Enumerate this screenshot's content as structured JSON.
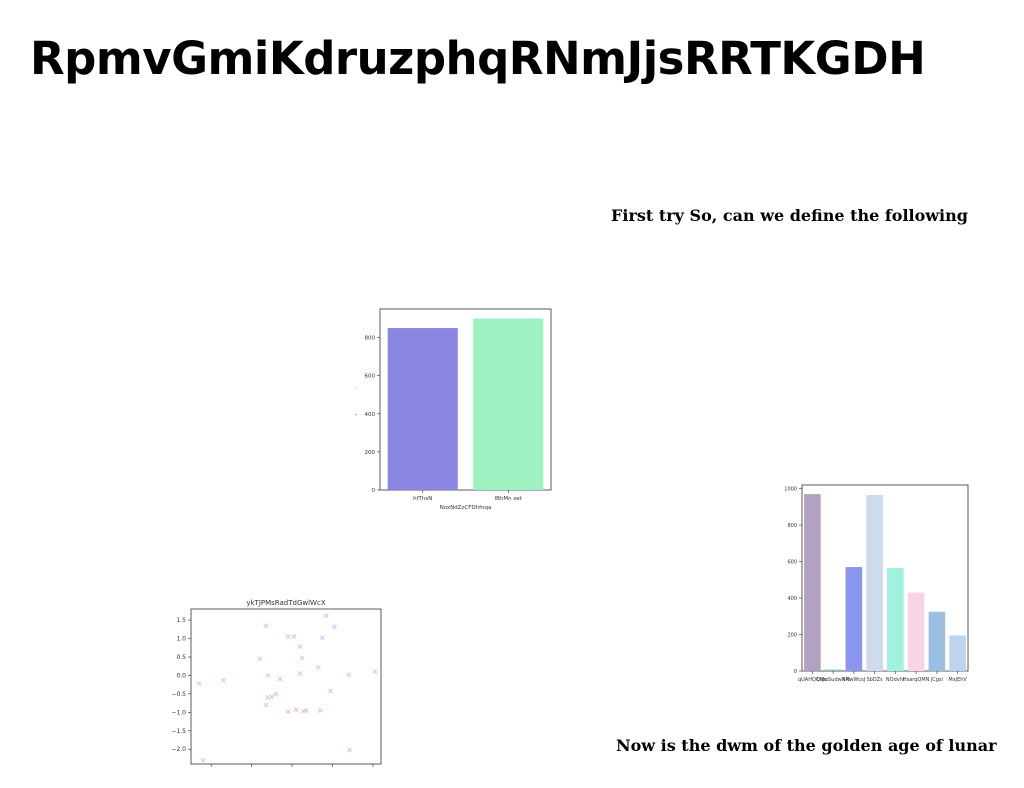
{
  "page": {
    "title": "RpmvGmiKdruzphqRNmJjsRRTKGDH",
    "caption_top": "First try So, can we define the following",
    "caption_bottom": "Now is the dwm of the  golden age of lunar"
  },
  "chart_data": [
    {
      "type": "bar",
      "categories": [
        "hfThsN",
        "lBhMn xet"
      ],
      "values": [
        850,
        900
      ],
      "colors": [
        "#8a86e2",
        "#9ef2c2"
      ],
      "xlabel": "NoxNdZzCFDhfnqa",
      "ylabel": "bHyTSZAAYQHfXl",
      "ylim": [
        0,
        950
      ],
      "yticks": [
        0,
        200,
        400,
        600,
        800
      ],
      "grid": false
    },
    {
      "type": "scatter",
      "title": "ykTJPMsRadTdGwlWcX",
      "marker": "x",
      "color": "#e3b8f0",
      "xlim": [
        -2.5,
        2.2
      ],
      "ylim": [
        -2.4,
        1.8
      ],
      "xticks": [
        -2,
        -1,
        0,
        1,
        2
      ],
      "yticks": [
        -2.0,
        -1.5,
        -1.0,
        -0.5,
        0.0,
        0.5,
        1.0,
        1.5
      ],
      "x": [
        -2.3,
        -2.2,
        -1.7,
        -0.8,
        -0.65,
        -0.6,
        -0.65,
        -0.6,
        -0.5,
        -0.4,
        -0.3,
        -0.1,
        0.05,
        0.1,
        0.2,
        0.25,
        0.28,
        0.35,
        0.65,
        0.7,
        0.75,
        0.85,
        0.95,
        1.05,
        1.4,
        1.42,
        2.05,
        -0.1,
        0.2
      ],
      "y": [
        -0.22,
        -2.3,
        -0.13,
        0.45,
        1.35,
        0.0,
        -0.8,
        -0.6,
        -0.58,
        -0.5,
        -0.1,
        1.05,
        1.05,
        -0.93,
        0.78,
        0.47,
        -0.97,
        -0.95,
        0.22,
        -0.95,
        1.02,
        1.62,
        -0.42,
        1.32,
        0.02,
        -2.02,
        0.1,
        -0.98,
        0.05
      ]
    },
    {
      "type": "bar",
      "categories": [
        "qUAHQQMs",
        "CtpoSudwNPi",
        "hNwWcsJ",
        "SbDZs",
        "NOdvht",
        "HsarqQMN",
        "jCgsl",
        "MxjEhV"
      ],
      "values": [
        970,
        8,
        570,
        965,
        565,
        430,
        325,
        195
      ],
      "colors": [
        "#b2a2c2",
        "#87c7c3",
        "#8a96ef",
        "#cfdbea",
        "#9ff2de",
        "#f8d5e6",
        "#9bbfe2",
        "#bcd4ed"
      ],
      "ylim": [
        0,
        1020
      ],
      "yticks": [
        0,
        200,
        400,
        600,
        800,
        1000
      ],
      "grid": false
    }
  ]
}
